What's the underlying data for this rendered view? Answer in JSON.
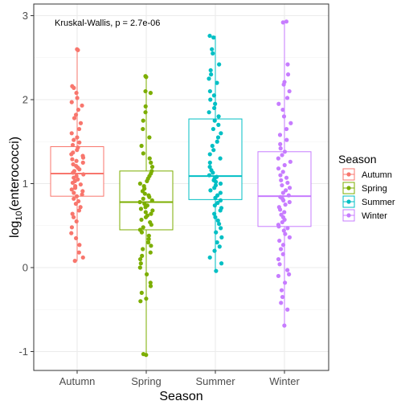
{
  "chart_data": {
    "type": "boxplot",
    "annotation": "Kruskal-Wallis, p = 2.7e-06",
    "xlabel": "Season",
    "ylabel_main": "log",
    "ylabel_sub": "10",
    "ylabel_rest": "(enterococci)",
    "ylim": [
      -1.2,
      3.05
    ],
    "yticks": [
      -1,
      0,
      1,
      2,
      3
    ],
    "ytick_labels": [
      "-1",
      "0",
      "1",
      "2",
      "3"
    ],
    "grid": true,
    "legend": {
      "title": "Season",
      "placement": "right",
      "items": [
        "Autumn",
        "Spring",
        "Summer",
        "Winter"
      ]
    },
    "categories": [
      "Autumn",
      "Spring",
      "Summer",
      "Winter"
    ],
    "colors": {
      "Autumn": "#F8766D",
      "Spring": "#7CAE00",
      "Summer": "#00BFC4",
      "Winter": "#C77CFF"
    },
    "boxes": [
      {
        "category": "Autumn",
        "whisker_low": 0.08,
        "q1": 0.85,
        "median": 1.12,
        "q3": 1.44,
        "whisker_high": 2.6
      },
      {
        "category": "Spring",
        "whisker_low": -1.03,
        "q1": 0.45,
        "median": 0.78,
        "q3": 1.15,
        "whisker_high": 2.28
      },
      {
        "category": "Summer",
        "whisker_low": -0.04,
        "q1": 0.81,
        "median": 1.09,
        "q3": 1.77,
        "whisker_high": 2.76
      },
      {
        "category": "Winter",
        "whisker_low": -0.69,
        "q1": 0.49,
        "median": 0.85,
        "q3": 1.38,
        "whisker_high": 2.93
      }
    ],
    "points": {
      "Autumn": [
        2.6,
        2.59,
        2.16,
        2.14,
        2.08,
        2.02,
        1.97,
        1.93,
        1.88,
        1.82,
        1.78,
        1.72,
        1.65,
        1.6,
        1.55,
        1.52,
        1.49,
        1.46,
        1.43,
        1.4,
        1.37,
        1.35,
        1.33,
        1.31,
        1.29,
        1.27,
        1.25,
        1.23,
        1.21,
        1.19,
        1.17,
        1.15,
        1.13,
        1.11,
        1.09,
        1.07,
        1.05,
        1.03,
        1.01,
        0.99,
        0.97,
        0.95,
        0.93,
        0.91,
        0.89,
        0.87,
        0.85,
        0.82,
        0.79,
        0.76,
        0.72,
        0.68,
        0.64,
        0.6,
        0.55,
        0.48,
        0.41,
        0.35,
        0.27,
        0.18,
        0.12,
        0.08
      ],
      "Spring": [
        2.28,
        2.27,
        2.1,
        2.08,
        1.92,
        1.85,
        1.75,
        1.65,
        1.55,
        1.45,
        1.36,
        1.3,
        1.25,
        1.2,
        1.15,
        1.12,
        1.09,
        1.06,
        1.03,
        1.0,
        0.97,
        0.94,
        0.91,
        0.88,
        0.86,
        0.84,
        0.82,
        0.8,
        0.78,
        0.76,
        0.74,
        0.72,
        0.7,
        0.68,
        0.66,
        0.64,
        0.62,
        0.6,
        0.57,
        0.54,
        0.51,
        0.48,
        0.45,
        0.42,
        0.38,
        0.34,
        0.3,
        0.26,
        0.22,
        0.18,
        0.14,
        0.1,
        0.05,
        0.0,
        -0.08,
        -0.18,
        -0.22,
        -0.3,
        -0.37,
        -0.4,
        -1.03,
        -1.04
      ],
      "Summer": [
        2.76,
        2.74,
        2.6,
        2.55,
        2.42,
        2.35,
        2.3,
        2.25,
        2.2,
        2.1,
        2.05,
        2.0,
        1.95,
        1.9,
        1.85,
        1.8,
        1.75,
        1.7,
        1.65,
        1.6,
        1.55,
        1.5,
        1.45,
        1.4,
        1.35,
        1.3,
        1.25,
        1.2,
        1.16,
        1.13,
        1.1,
        1.08,
        1.06,
        1.04,
        1.02,
        1.0,
        0.98,
        0.95,
        0.92,
        0.89,
        0.86,
        0.83,
        0.8,
        0.77,
        0.74,
        0.71,
        0.68,
        0.64,
        0.6,
        0.56,
        0.52,
        0.47,
        0.42,
        0.36,
        0.3,
        0.25,
        0.2,
        0.12,
        0.05,
        -0.04
      ],
      "Winter": [
        2.93,
        2.92,
        2.42,
        2.3,
        2.21,
        2.18,
        2.1,
        2.02,
        1.95,
        1.88,
        1.8,
        1.72,
        1.65,
        1.58,
        1.52,
        1.47,
        1.42,
        1.38,
        1.34,
        1.3,
        1.26,
        1.22,
        1.18,
        1.14,
        1.1,
        1.07,
        1.04,
        1.01,
        0.98,
        0.95,
        0.92,
        0.89,
        0.86,
        0.84,
        0.82,
        0.8,
        0.78,
        0.75,
        0.72,
        0.69,
        0.66,
        0.63,
        0.6,
        0.57,
        0.54,
        0.51,
        0.49,
        0.47,
        0.44,
        0.4,
        0.36,
        0.32,
        0.27,
        0.22,
        0.16,
        0.1,
        0.04,
        -0.03,
        -0.08,
        -0.1,
        -0.18,
        -0.27,
        -0.35,
        -0.42,
        -0.5,
        -0.69
      ]
    }
  }
}
